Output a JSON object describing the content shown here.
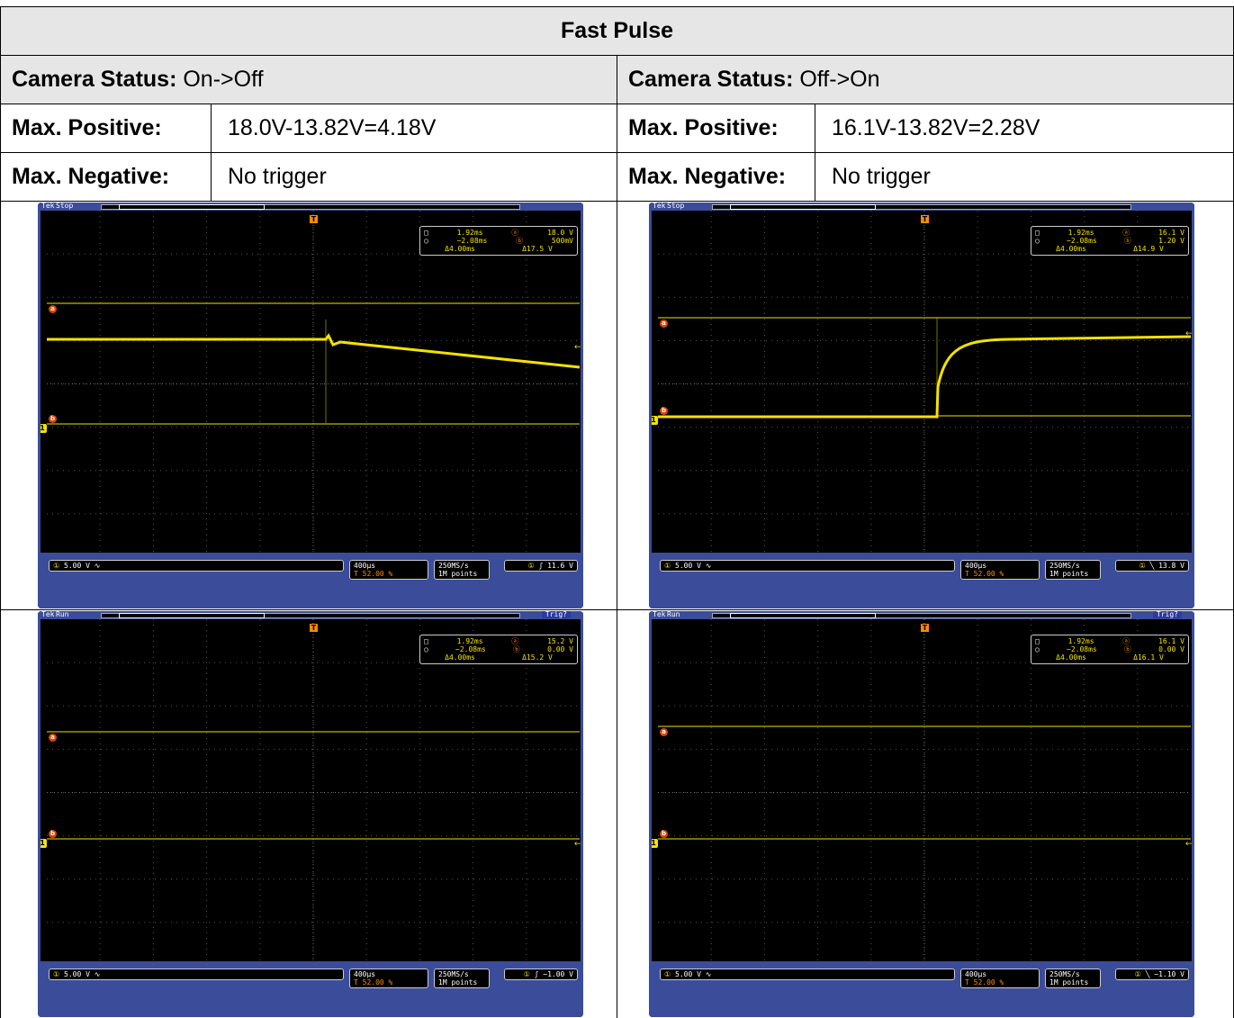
{
  "table": {
    "title": "Fast Pulse",
    "left": {
      "status_label": "Camera Status:",
      "status_value": "On->Off",
      "max_pos_label": "Max. Positive:",
      "max_pos_value": "18.0V-13.82V=4.18V",
      "max_neg_label": "Max. Negative:",
      "max_neg_value": "No trigger"
    },
    "right": {
      "status_label": "Camera Status:",
      "status_value": "Off->On",
      "max_pos_label": "Max. Positive:",
      "max_pos_value": "16.1V-13.82V=2.28V",
      "max_neg_label": "Max. Negative:",
      "max_neg_value": "No trigger"
    }
  },
  "scopes": [
    {
      "brand": "Tek",
      "state": "Stop",
      "trig_badge": "",
      "readout": {
        "t1": "1.92ms",
        "t2": "−2.08ms",
        "dt": "Δ4.00ms",
        "va": "18.0 V",
        "vb": "500mV",
        "dv": "Δ17.5 V"
      },
      "ch_scale": "5.00 V",
      "timebase": "400μs",
      "trig_pos": "52.00 %",
      "sample_rate": "250MS/s",
      "record": "1M points",
      "trigger": "11.6 V",
      "trigger_slope": "ʃ",
      "waveform": "falling"
    },
    {
      "brand": "Tek",
      "state": "Stop",
      "trig_badge": "",
      "readout": {
        "t1": "1.92ms",
        "t2": "−2.08ms",
        "dt": "Δ4.00ms",
        "va": "16.1 V",
        "vb": "1.20 V",
        "dv": "Δ14.9 V"
      },
      "ch_scale": "5.00 V",
      "timebase": "400μs",
      "trig_pos": "52.00 %",
      "sample_rate": "250MS/s",
      "record": "1M points",
      "trigger": "13.8 V",
      "trigger_slope": "╲",
      "waveform": "rising"
    },
    {
      "brand": "Tek",
      "state": "Run",
      "trig_badge": "Trig?",
      "readout": {
        "t1": "1.92ms",
        "t2": "−2.08ms",
        "dt": "Δ4.00ms",
        "va": "15.2 V",
        "vb": "0.00 V",
        "dv": "Δ15.2 V"
      },
      "ch_scale": "5.00 V",
      "timebase": "400μs",
      "trig_pos": "52.00 %",
      "sample_rate": "250MS/s",
      "record": "1M points",
      "trigger": "−1.00 V",
      "trigger_slope": "ʃ",
      "waveform": "none"
    },
    {
      "brand": "Tek",
      "state": "Run",
      "trig_badge": "Trig?",
      "readout": {
        "t1": "1.92ms",
        "t2": "−2.08ms",
        "dt": "Δ4.00ms",
        "va": "16.1 V",
        "vb": "0.00 V",
        "dv": "Δ16.1 V"
      },
      "ch_scale": "5.00 V",
      "timebase": "400μs",
      "trig_pos": "52.00 %",
      "sample_rate": "250MS/s",
      "record": "1M points",
      "trigger": "−1.10 V",
      "trigger_slope": "╲",
      "waveform": "none"
    }
  ],
  "colors": {
    "trace": "#f4e200",
    "cursor": "#f4e200",
    "frame": "#3b4d9a",
    "grid": "#555555"
  }
}
